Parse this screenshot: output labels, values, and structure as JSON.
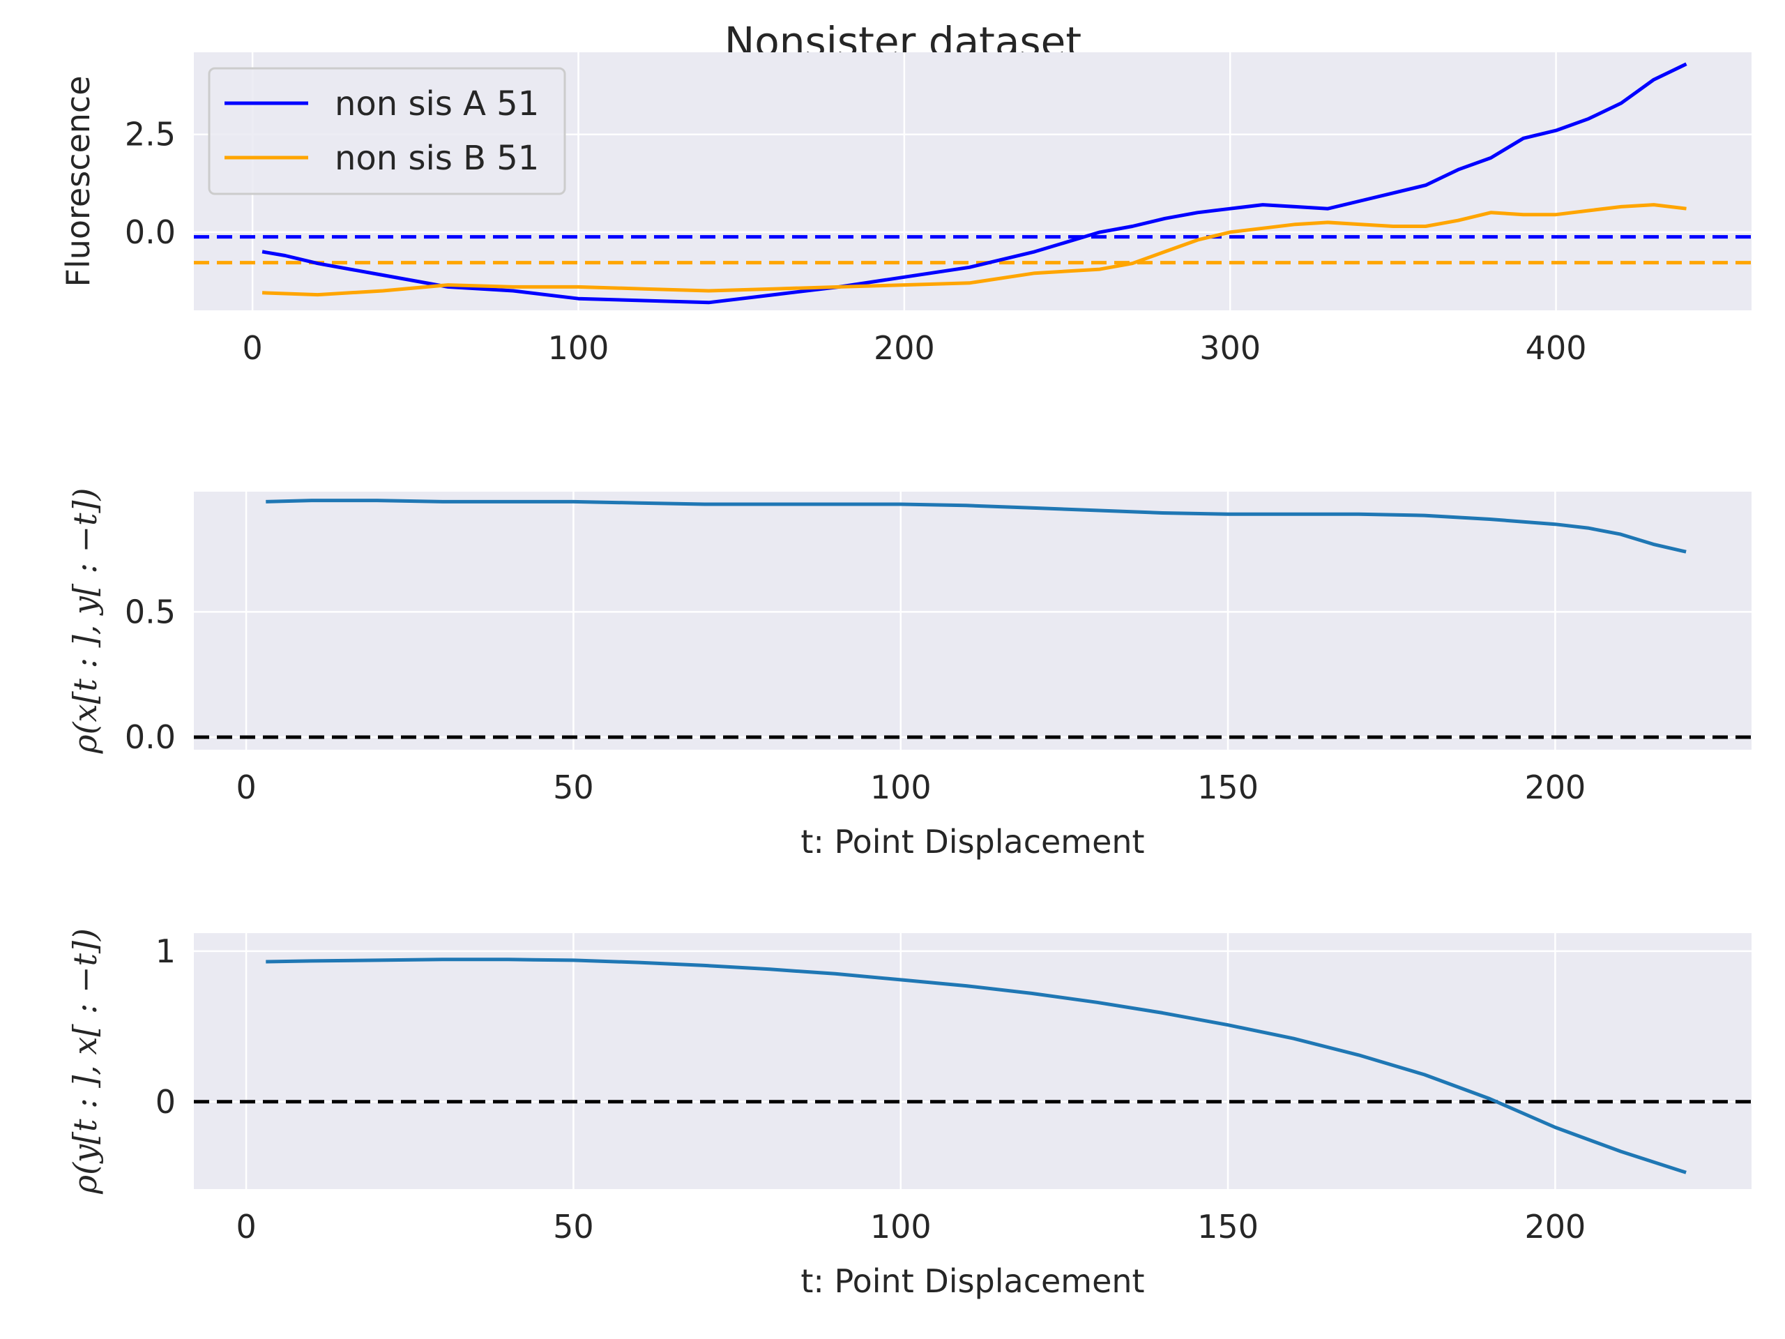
{
  "chart_data": [
    {
      "type": "line",
      "title": "Nonsister dataset",
      "xlabel": "",
      "ylabel": "Fluorescence",
      "xlim": [
        -18,
        460
      ],
      "ylim": [
        -2.0,
        4.6
      ],
      "xticks": [
        0,
        100,
        200,
        300,
        400
      ],
      "yticks": [
        0.0,
        2.5
      ],
      "ytick_labels": [
        "0.0",
        "2.5"
      ],
      "grid": true,
      "legend_position": "upper-left",
      "series": [
        {
          "name": "non sis A 51",
          "color": "#0000ff",
          "x": [
            3,
            10,
            20,
            40,
            60,
            80,
            100,
            120,
            140,
            160,
            180,
            200,
            220,
            240,
            260,
            270,
            280,
            290,
            300,
            310,
            320,
            330,
            340,
            350,
            360,
            370,
            380,
            390,
            400,
            410,
            420,
            430,
            440
          ],
          "y": [
            -0.5,
            -0.6,
            -0.8,
            -1.1,
            -1.4,
            -1.5,
            -1.7,
            -1.75,
            -1.8,
            -1.6,
            -1.4,
            -1.15,
            -0.9,
            -0.5,
            0.0,
            0.15,
            0.35,
            0.5,
            0.6,
            0.7,
            0.65,
            0.6,
            0.8,
            1.0,
            1.2,
            1.6,
            1.9,
            2.4,
            2.6,
            2.9,
            3.3,
            3.9,
            4.3
          ]
        },
        {
          "name": "non sis B 51",
          "color": "#ffa500",
          "x": [
            3,
            20,
            40,
            60,
            80,
            100,
            120,
            140,
            160,
            180,
            200,
            220,
            240,
            260,
            270,
            280,
            290,
            300,
            310,
            320,
            330,
            340,
            350,
            360,
            370,
            380,
            390,
            400,
            410,
            420,
            430,
            440
          ],
          "y": [
            -1.55,
            -1.6,
            -1.5,
            -1.35,
            -1.4,
            -1.4,
            -1.45,
            -1.5,
            -1.45,
            -1.4,
            -1.35,
            -1.3,
            -1.05,
            -0.95,
            -0.8,
            -0.5,
            -0.2,
            0.0,
            0.1,
            0.2,
            0.25,
            0.2,
            0.15,
            0.15,
            0.3,
            0.5,
            0.45,
            0.45,
            0.55,
            0.65,
            0.7,
            0.6
          ]
        }
      ],
      "hlines": [
        {
          "y": -0.12,
          "color": "#0000ff",
          "style": "dashed"
        },
        {
          "y": -0.78,
          "color": "#ffa500",
          "style": "dashed"
        }
      ]
    },
    {
      "type": "line",
      "title": "",
      "xlabel": "t: Point Displacement",
      "ylabel": "ρ(x[t : ], y[ : −t])",
      "xlim": [
        -8,
        230
      ],
      "ylim": [
        -0.05,
        0.98
      ],
      "xticks": [
        0,
        50,
        100,
        150,
        200
      ],
      "yticks": [
        0.0,
        0.5
      ],
      "ytick_labels": [
        "0.0",
        "0.5"
      ],
      "grid": true,
      "series": [
        {
          "color": "#1f77b4",
          "x": [
            3,
            10,
            20,
            30,
            40,
            50,
            60,
            70,
            80,
            90,
            100,
            110,
            120,
            130,
            140,
            150,
            160,
            170,
            180,
            190,
            200,
            205,
            210,
            215,
            220
          ],
          "y": [
            0.94,
            0.945,
            0.945,
            0.94,
            0.94,
            0.94,
            0.935,
            0.93,
            0.93,
            0.93,
            0.93,
            0.925,
            0.915,
            0.905,
            0.895,
            0.89,
            0.89,
            0.89,
            0.885,
            0.87,
            0.85,
            0.835,
            0.81,
            0.77,
            0.74
          ]
        }
      ],
      "hlines": [
        {
          "y": 0.0,
          "color": "#000000",
          "style": "dashed"
        }
      ]
    },
    {
      "type": "line",
      "title": "",
      "xlabel": "t: Point Displacement",
      "ylabel": "ρ(y[t : ], x[ : −t])",
      "xlim": [
        -8,
        230
      ],
      "ylim": [
        -0.58,
        1.12
      ],
      "xticks": [
        0,
        50,
        100,
        150,
        200
      ],
      "yticks": [
        0,
        1
      ],
      "ytick_labels": [
        "0",
        "1"
      ],
      "grid": true,
      "series": [
        {
          "color": "#1f77b4",
          "x": [
            3,
            10,
            20,
            30,
            40,
            50,
            60,
            70,
            80,
            90,
            100,
            110,
            120,
            130,
            140,
            150,
            160,
            170,
            180,
            190,
            200,
            210,
            220
          ],
          "y": [
            0.93,
            0.935,
            0.94,
            0.945,
            0.945,
            0.94,
            0.925,
            0.905,
            0.88,
            0.85,
            0.81,
            0.77,
            0.72,
            0.66,
            0.59,
            0.51,
            0.42,
            0.31,
            0.18,
            0.02,
            -0.17,
            -0.33,
            -0.47
          ]
        }
      ],
      "hlines": [
        {
          "y": 0.0,
          "color": "#000000",
          "style": "dashed"
        }
      ]
    }
  ]
}
